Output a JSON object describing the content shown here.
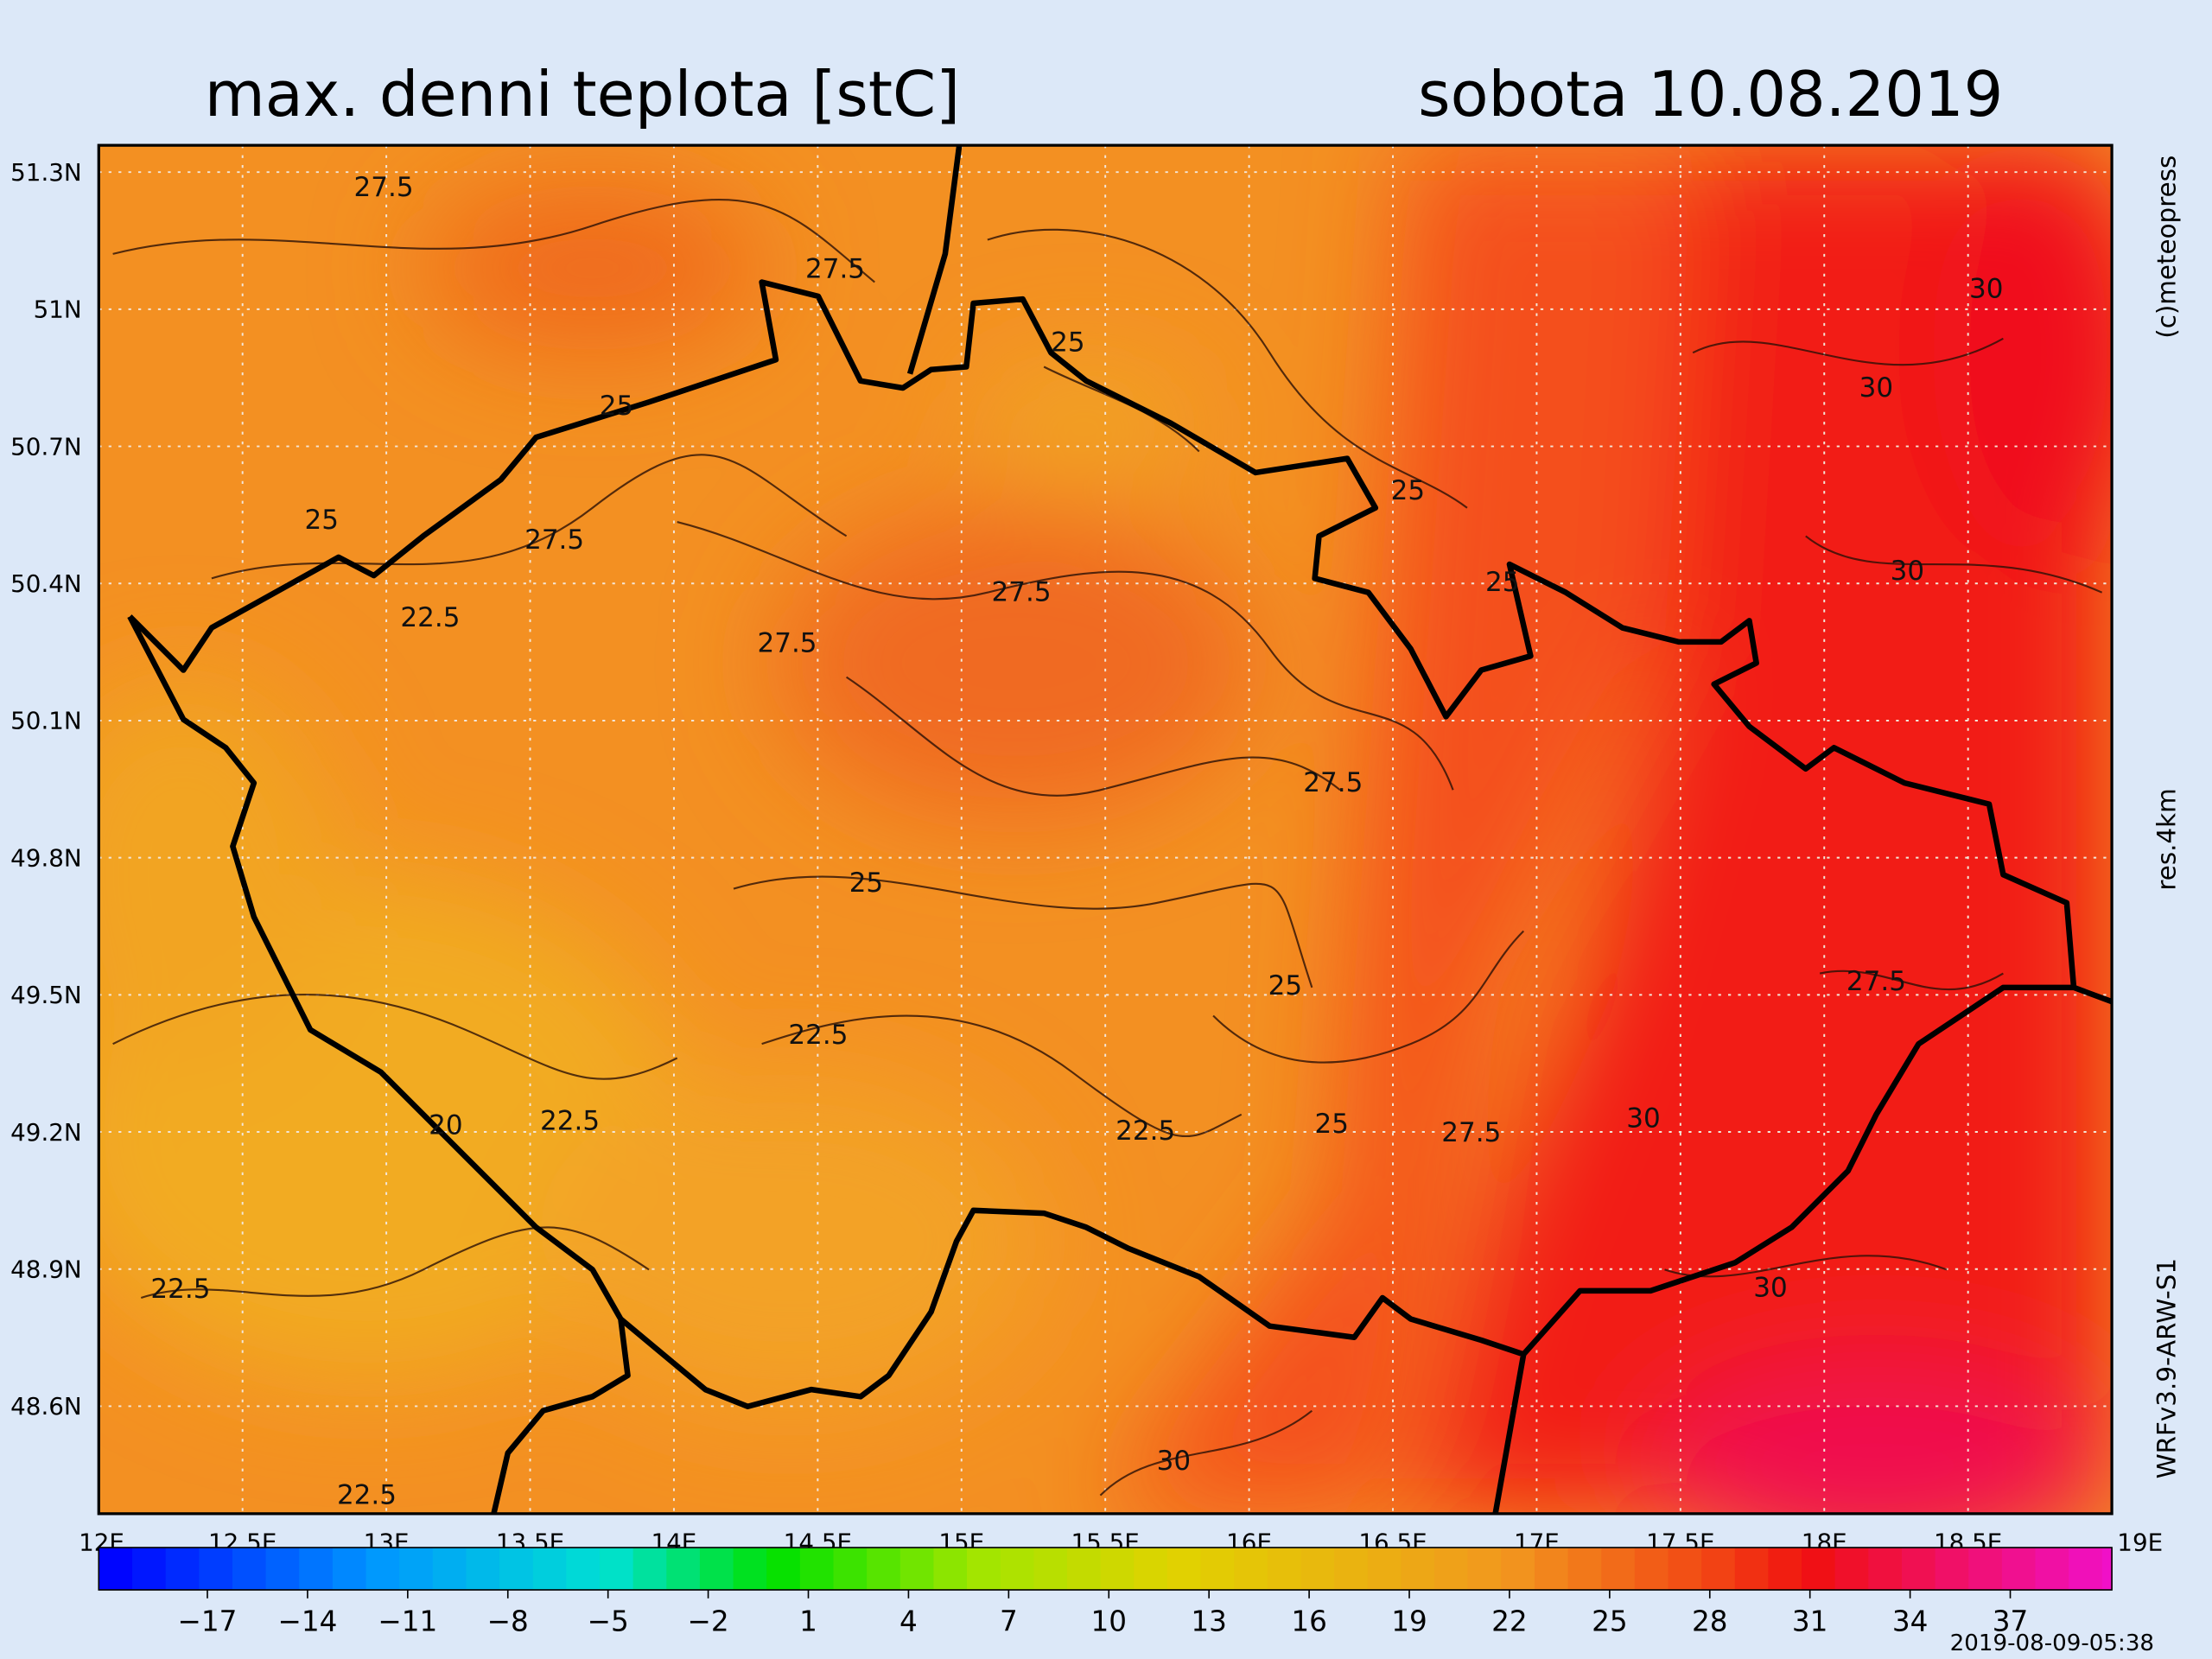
{
  "header": {
    "title": "max. denni teplota [stC]",
    "date": "sobota 10.08.2019"
  },
  "axes": {
    "latitude": [
      "51.3N",
      "51N",
      "50.7N",
      "50.4N",
      "50.1N",
      "49.8N",
      "49.5N",
      "49.2N",
      "48.9N",
      "48.6N"
    ],
    "longitude": [
      "12E",
      "12.5E",
      "13E",
      "13.5E",
      "14E",
      "14.5E",
      "15E",
      "15.5E",
      "16E",
      "16.5E",
      "17E",
      "17.5E",
      "18E",
      "18.5E",
      "19E"
    ]
  },
  "colorbar": {
    "labels": [
      "−17",
      "−14",
      "−11",
      "−8",
      "−5",
      "−2",
      "1",
      "4",
      "7",
      "10",
      "13",
      "16",
      "19",
      "22",
      "25",
      "28",
      "31",
      "34",
      "37"
    ]
  },
  "contour_labels": [
    "27.5",
    "27.5",
    "25",
    "25",
    "25",
    "25",
    "27.5",
    "30",
    "30",
    "30",
    "27.5",
    "25",
    "22.5",
    "27.5",
    "27.5",
    "25",
    "25",
    "27.5",
    "22.5",
    "20",
    "22.5",
    "22.5",
    "25",
    "27.5",
    "30",
    "30",
    "22.5",
    "30",
    "22.5"
  ],
  "credits": [
    "(c)meteopress",
    "res.4km",
    "WRFv3.9-ARW-S1"
  ],
  "timestamp": "2019-08-09-05:38"
}
